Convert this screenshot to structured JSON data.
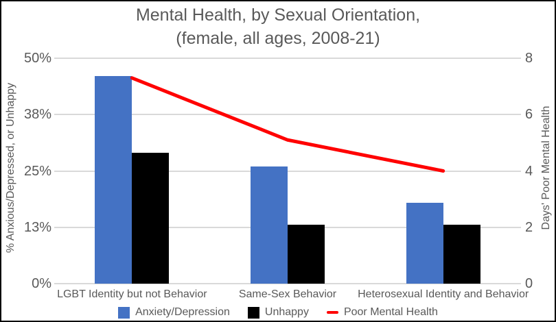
{
  "title": {
    "line1": "Mental Health, by Sexual Orientation,",
    "line2": "(female, all ages, 2008-21)"
  },
  "chart_data": {
    "type": "bar",
    "subtype": "combo-bar-line-dual-axis",
    "title": "Mental Health, by Sexual Orientation, (female, all ages, 2008-21)",
    "categories": [
      "LGBT Identity but not Behavior",
      "Same-Sex Behavior",
      "Heterosexual Identity and Behavior"
    ],
    "series": [
      {
        "name": "Anxiety/Depression",
        "type": "bar",
        "axis": "left",
        "color": "#4472C4",
        "values": [
          46,
          26,
          18
        ]
      },
      {
        "name": "Unhappy",
        "type": "bar",
        "axis": "left",
        "color": "#000000",
        "values": [
          29,
          13,
          13
        ]
      },
      {
        "name": "Poor Mental Health",
        "type": "line",
        "axis": "right",
        "color": "#FF0000",
        "values": [
          7.3,
          5.1,
          4.0
        ]
      }
    ],
    "ylabel_left": "% Anxious/Depressed, or Unhappy",
    "ylabel_right": "Days' Poor Mental Health",
    "left_ylim": [
      0,
      50
    ],
    "right_ylim": [
      0,
      8
    ],
    "left_ticks": [
      {
        "label": "0%",
        "v": 0
      },
      {
        "label": "13%",
        "v": 12.5
      },
      {
        "label": "25%",
        "v": 25
      },
      {
        "label": "38%",
        "v": 37.5
      },
      {
        "label": "50%",
        "v": 50
      }
    ],
    "right_ticks": [
      {
        "label": "0",
        "v": 0
      },
      {
        "label": "2",
        "v": 2
      },
      {
        "label": "4",
        "v": 4
      },
      {
        "label": "6",
        "v": 6
      },
      {
        "label": "8",
        "v": 8
      }
    ],
    "grid": true,
    "legend_position": "bottom"
  },
  "colors": {
    "bar_blue": "#4472C4",
    "bar_black": "#000000",
    "line_red": "#FF0000",
    "gridline": "#D9D9D9",
    "text": "#595959",
    "border": "#000000"
  }
}
